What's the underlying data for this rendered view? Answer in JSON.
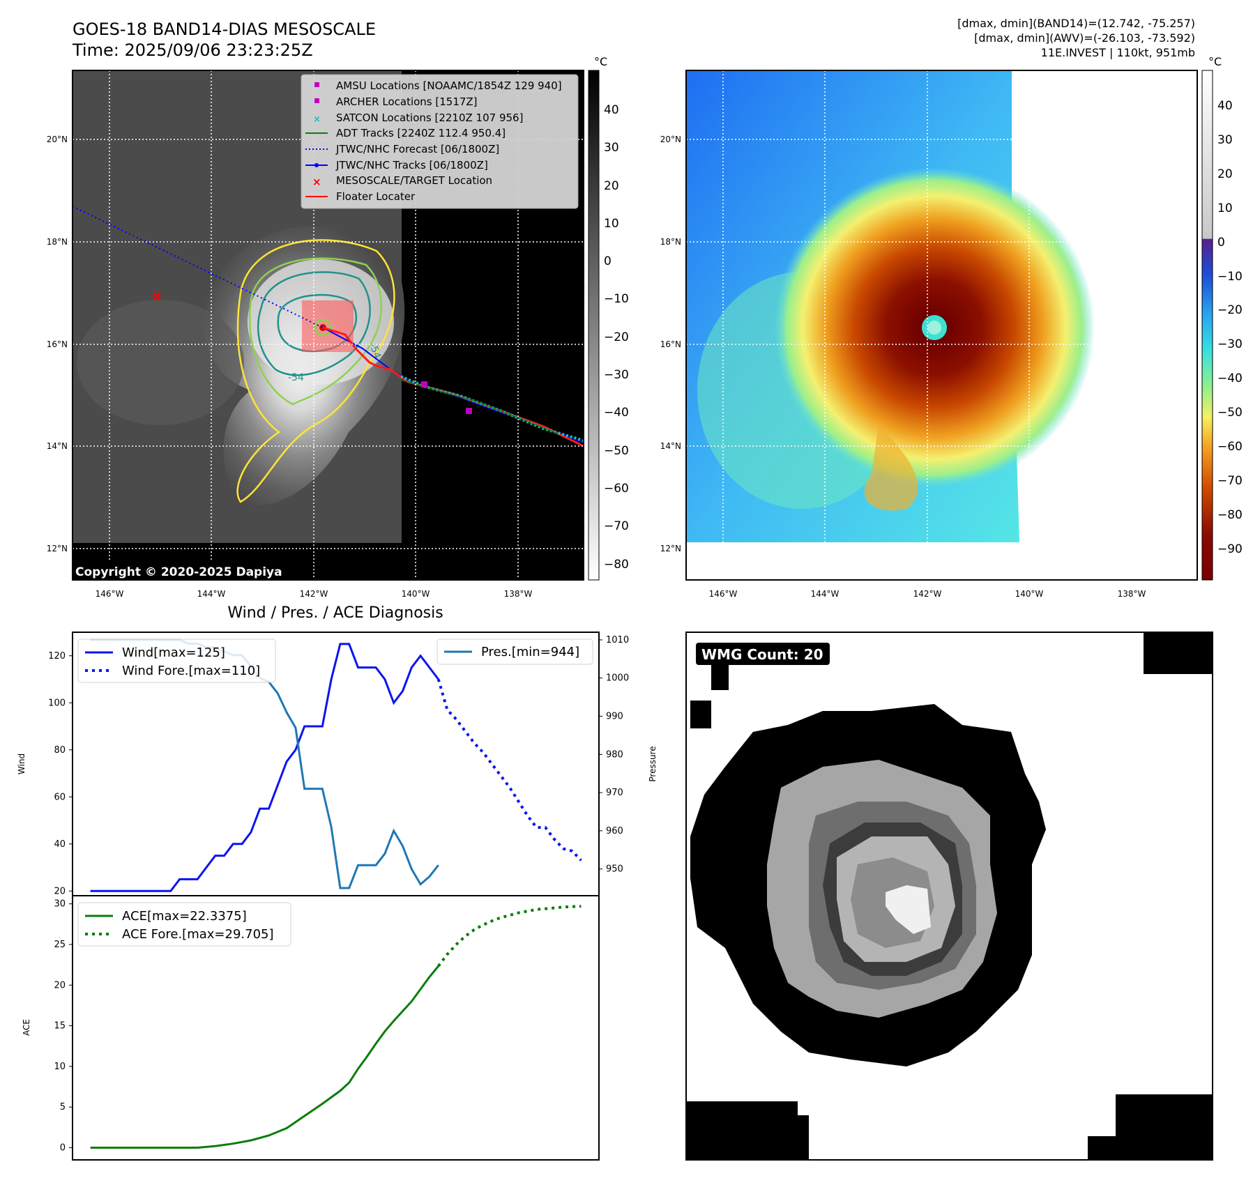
{
  "header": {
    "title_line1": "GOES-18 BAND14-DIAS MESOSCALE",
    "title_line2": "Time: 2025/09/06 23:23:25Z",
    "info_line1": "[dmax, dmin](BAND14)=(12.742, -75.257)",
    "info_line2": "[dmax, dmin](AWV)=(-26.103, -73.592)",
    "info_line3": "11E.INVEST | 110kt, 951mb"
  },
  "colors": {
    "wind": "#0a14f0",
    "pressure": "#1f77b4",
    "ace": "#0a7d0a",
    "track_red": "#ff1a1a",
    "track_blue": "#0000ff",
    "contour_yellow": "#ffe433",
    "contour_green": "#8fd14f",
    "contour_teal": "#21918c"
  },
  "map_ir": {
    "unit": "°C",
    "lat_labels": [
      "20°N",
      "18°N",
      "16°N",
      "14°N",
      "12°N"
    ],
    "lon_labels": [
      "146°W",
      "144°W",
      "142°W",
      "140°W",
      "138°W"
    ],
    "colorbar_ticks": [
      "40",
      "30",
      "20",
      "10",
      "0",
      "−10",
      "−20",
      "−30",
      "−40",
      "−50",
      "−60",
      "−70",
      "−80"
    ],
    "copyright": "Copyright © 2020-2025 Dapiya",
    "contour_labels": [
      "-54",
      "-54"
    ],
    "legend": [
      {
        "label": "AMSU Locations [NOAAMC/1854Z 129 940]",
        "marker": "square",
        "color": "#c000c0"
      },
      {
        "label": "ARCHER Locations [1517Z]",
        "marker": "square",
        "color": "#c000c0"
      },
      {
        "label": "SATCON Locations [2210Z 107 956]",
        "marker": "x",
        "color": "#17becf"
      },
      {
        "label": "ADT Tracks [2240Z 112.4 950.4]",
        "marker": "line",
        "color": "#0a7d0a"
      },
      {
        "label": "JTWC/NHC Forecast [06/1800Z]",
        "marker": "dotted",
        "color": "#0000ff"
      },
      {
        "label": "JTWC/NHC Tracks [06/1800Z]",
        "marker": "line-dot",
        "color": "#0000ff"
      },
      {
        "label": "MESOSCALE/TARGET Location",
        "marker": "x",
        "color": "#ff0000"
      },
      {
        "label": "Floater Locater",
        "marker": "line",
        "color": "#ff0000"
      }
    ]
  },
  "map_awv": {
    "unit": "°C",
    "lat_labels": [
      "20°N",
      "18°N",
      "16°N",
      "14°N",
      "12°N"
    ],
    "lon_labels": [
      "146°W",
      "144°W",
      "142°W",
      "140°W",
      "138°W"
    ],
    "colorbar_ticks": [
      "40",
      "30",
      "20",
      "10",
      "0",
      "−10",
      "−20",
      "−30",
      "−40",
      "−50",
      "−60",
      "−70",
      "−80",
      "−90"
    ]
  },
  "chart_data": [
    {
      "type": "line",
      "title": "Wind / Pres. / ACE Diagnosis",
      "ylabel": "Wind",
      "y2label": "Pressure",
      "ylim": [
        18,
        130
      ],
      "y2lim": [
        943,
        1012
      ],
      "yticks": [
        20,
        40,
        60,
        80,
        100,
        120
      ],
      "y2ticks": [
        950,
        960,
        970,
        980,
        990,
        1000,
        1010
      ],
      "x": [
        0,
        1,
        2,
        3,
        4,
        5,
        6,
        7,
        8,
        9,
        10,
        11,
        12,
        13,
        14,
        15,
        16,
        17,
        18,
        19,
        20,
        21,
        22,
        23,
        24,
        25,
        26,
        27,
        28,
        29,
        30,
        31,
        32,
        33,
        34,
        35,
        36,
        37,
        38,
        39
      ],
      "series": [
        {
          "name": "Wind[max=125]",
          "style": "solid",
          "axis": "left",
          "x": [
            0,
            1,
            2,
            3,
            4,
            5,
            6,
            7,
            8,
            9,
            10,
            11,
            12,
            13,
            14,
            15,
            16,
            17,
            18,
            19,
            20,
            21,
            22,
            23,
            24,
            25,
            26,
            27,
            28,
            29,
            30,
            31,
            32,
            33,
            34,
            35,
            36,
            37,
            38,
            39
          ],
          "values": [
            20,
            20,
            20,
            20,
            20,
            20,
            20,
            20,
            20,
            20,
            25,
            25,
            25,
            30,
            35,
            35,
            40,
            40,
            45,
            55,
            55,
            65,
            75,
            80,
            90,
            90,
            90,
            110,
            125,
            125,
            115,
            115,
            115,
            110,
            100,
            105,
            115,
            120,
            115,
            110
          ]
        },
        {
          "name": "Wind Fore.[max=110]",
          "style": "dotted",
          "axis": "left",
          "x": [
            39,
            40,
            41,
            42,
            43,
            44,
            45,
            46,
            47,
            48,
            49,
            50,
            51,
            52,
            53,
            54,
            55
          ],
          "values": [
            110,
            97,
            93,
            88,
            83,
            79,
            74,
            69,
            64,
            58,
            52,
            47,
            47,
            42,
            38,
            37,
            33
          ]
        },
        {
          "name": "Pres.[min=944]",
          "style": "solid",
          "axis": "right",
          "x": [
            0,
            1,
            2,
            3,
            4,
            5,
            6,
            7,
            8,
            9,
            10,
            11,
            12,
            13,
            14,
            15,
            16,
            17,
            18,
            19,
            20,
            21,
            22,
            23,
            24,
            25,
            26,
            27,
            28,
            29,
            30,
            31,
            32,
            33,
            34,
            35,
            36,
            37,
            38,
            39
          ],
          "values": [
            1010,
            1010,
            1010,
            1010,
            1010,
            1010,
            1010,
            1010,
            1010,
            1010,
            1010,
            1009,
            1009,
            1008,
            1008,
            1007,
            1006,
            1006,
            1003,
            1000,
            999,
            996,
            991,
            987,
            971,
            971,
            971,
            961,
            945,
            945,
            951,
            951,
            951,
            954,
            960,
            956,
            950,
            946,
            948,
            951
          ]
        }
      ]
    },
    {
      "type": "line",
      "ylabel": "ACE",
      "ylim": [
        -1.5,
        31
      ],
      "yticks": [
        0,
        5,
        10,
        15,
        20,
        25,
        30
      ],
      "series": [
        {
          "name": "ACE[max=22.3375]",
          "style": "solid",
          "x": [
            0,
            4,
            8,
            10,
            12,
            14,
            16,
            18,
            20,
            22,
            24,
            26,
            28,
            29,
            30,
            31,
            32,
            33,
            34,
            35,
            36,
            37,
            38,
            39
          ],
          "values": [
            0,
            0,
            0,
            0,
            0,
            0.2,
            0.5,
            0.9,
            1.5,
            2.4,
            3.9,
            5.4,
            7,
            8,
            9.7,
            11.2,
            12.8,
            14.3,
            15.6,
            16.8,
            18,
            19.5,
            21,
            22.34
          ]
        },
        {
          "name": "ACE Fore.[max=29.705]",
          "style": "dotted",
          "x": [
            39,
            40,
            41,
            42,
            43,
            44,
            45,
            46,
            47,
            48,
            49,
            50,
            51,
            52,
            53,
            54,
            55
          ],
          "values": [
            22.34,
            23.8,
            25,
            26,
            26.8,
            27.4,
            27.9,
            28.3,
            28.6,
            28.9,
            29.1,
            29.3,
            29.4,
            29.5,
            29.6,
            29.65,
            29.705
          ]
        }
      ]
    }
  ],
  "wmg": {
    "label": "WMG Count: 20"
  }
}
